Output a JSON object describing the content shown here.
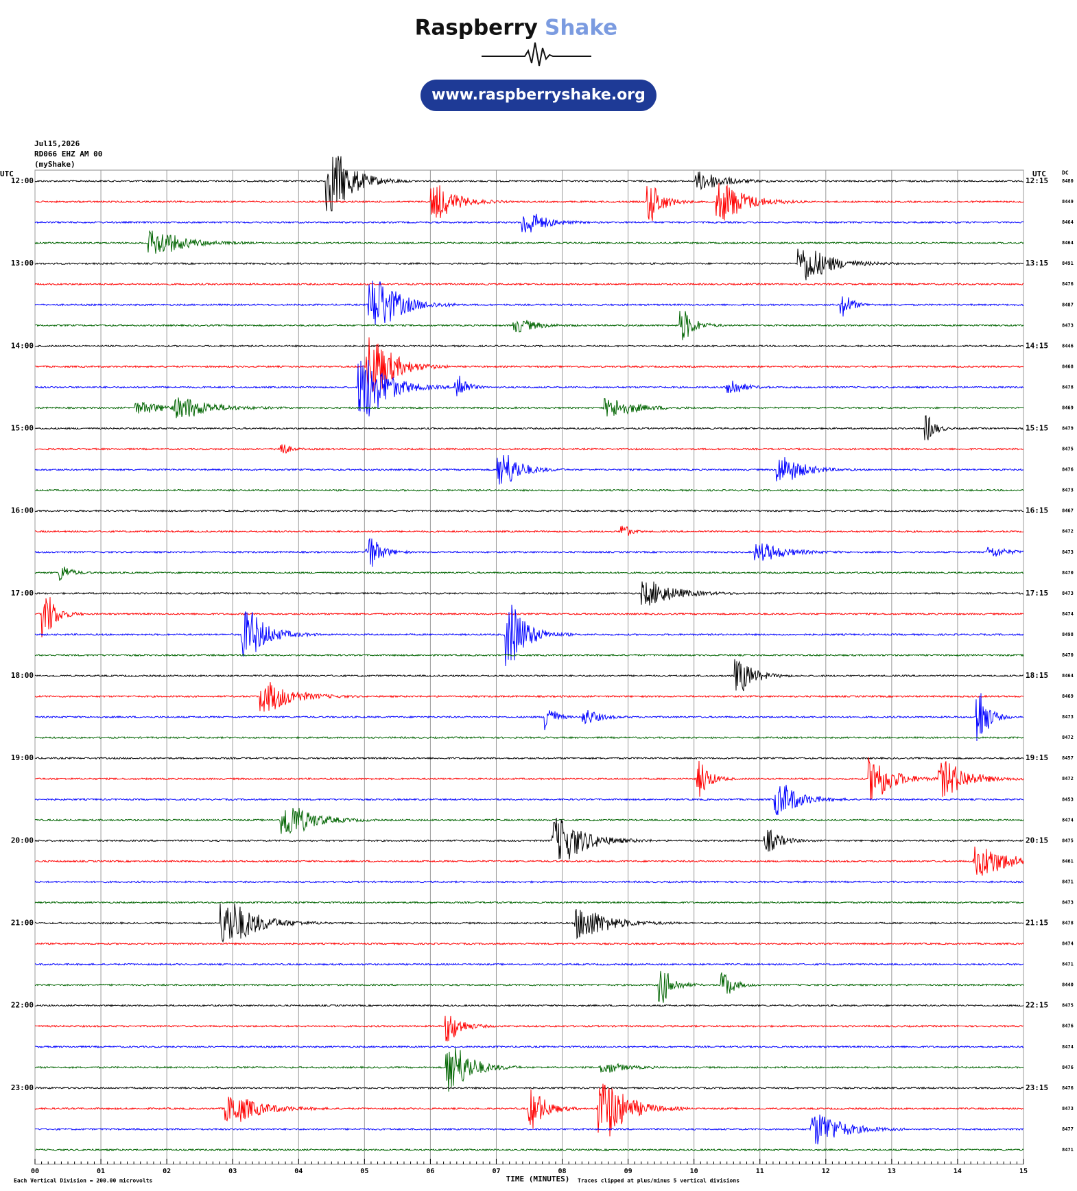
{
  "header": {
    "brand": "Raspberry",
    "brand_accent": "Shake",
    "url": "www.raspberryshake.org"
  },
  "info": {
    "date": "Jul15,2026",
    "station": "RD066 EHZ AM 00",
    "network": "(myShake)"
  },
  "plot": {
    "left_label": "UTC",
    "right_label": "UTC",
    "dc_label": "DC",
    "left_times": [
      "12:00",
      "13:00",
      "14:00",
      "15:00",
      "16:00",
      "17:00",
      "18:00",
      "19:00",
      "20:00",
      "21:00",
      "22:00",
      "23:00"
    ],
    "right_times": [
      "12:15",
      "13:15",
      "14:15",
      "15:15",
      "16:15",
      "17:15",
      "18:15",
      "19:15",
      "20:15",
      "21:15",
      "22:15",
      "23:15"
    ],
    "dc": [
      "8480",
      "8449",
      "8464",
      "8464",
      "8491",
      "8476",
      "8487",
      "8473",
      "8446",
      "8468",
      "8478",
      "8469",
      "8479",
      "8475",
      "8476",
      "8473",
      "8467",
      "8472",
      "8473",
      "8470",
      "8473",
      "8474",
      "8498",
      "8470",
      "8464",
      "8469",
      "8473",
      "8472",
      "8457",
      "8472",
      "8453",
      "8474",
      "8475",
      "8461",
      "8471",
      "8473",
      "8478",
      "8474",
      "8471",
      "8440",
      "8475",
      "8476",
      "8474",
      "8476",
      "8476",
      "8473",
      "8477",
      "8471"
    ],
    "trace_colors": [
      "#000000",
      "#ff0000",
      "#0000ff",
      "#006400"
    ],
    "x_ticks": [
      "00",
      "01",
      "02",
      "03",
      "04",
      "05",
      "06",
      "07",
      "08",
      "09",
      "10",
      "11",
      "12",
      "13",
      "14",
      "15"
    ],
    "x_label": "TIME (MINUTES)",
    "scale_note": "Each Vertical Division =  200.00 microvolts",
    "clip_note": "Traces clipped at plus/minus 5 vertical divisions"
  }
}
